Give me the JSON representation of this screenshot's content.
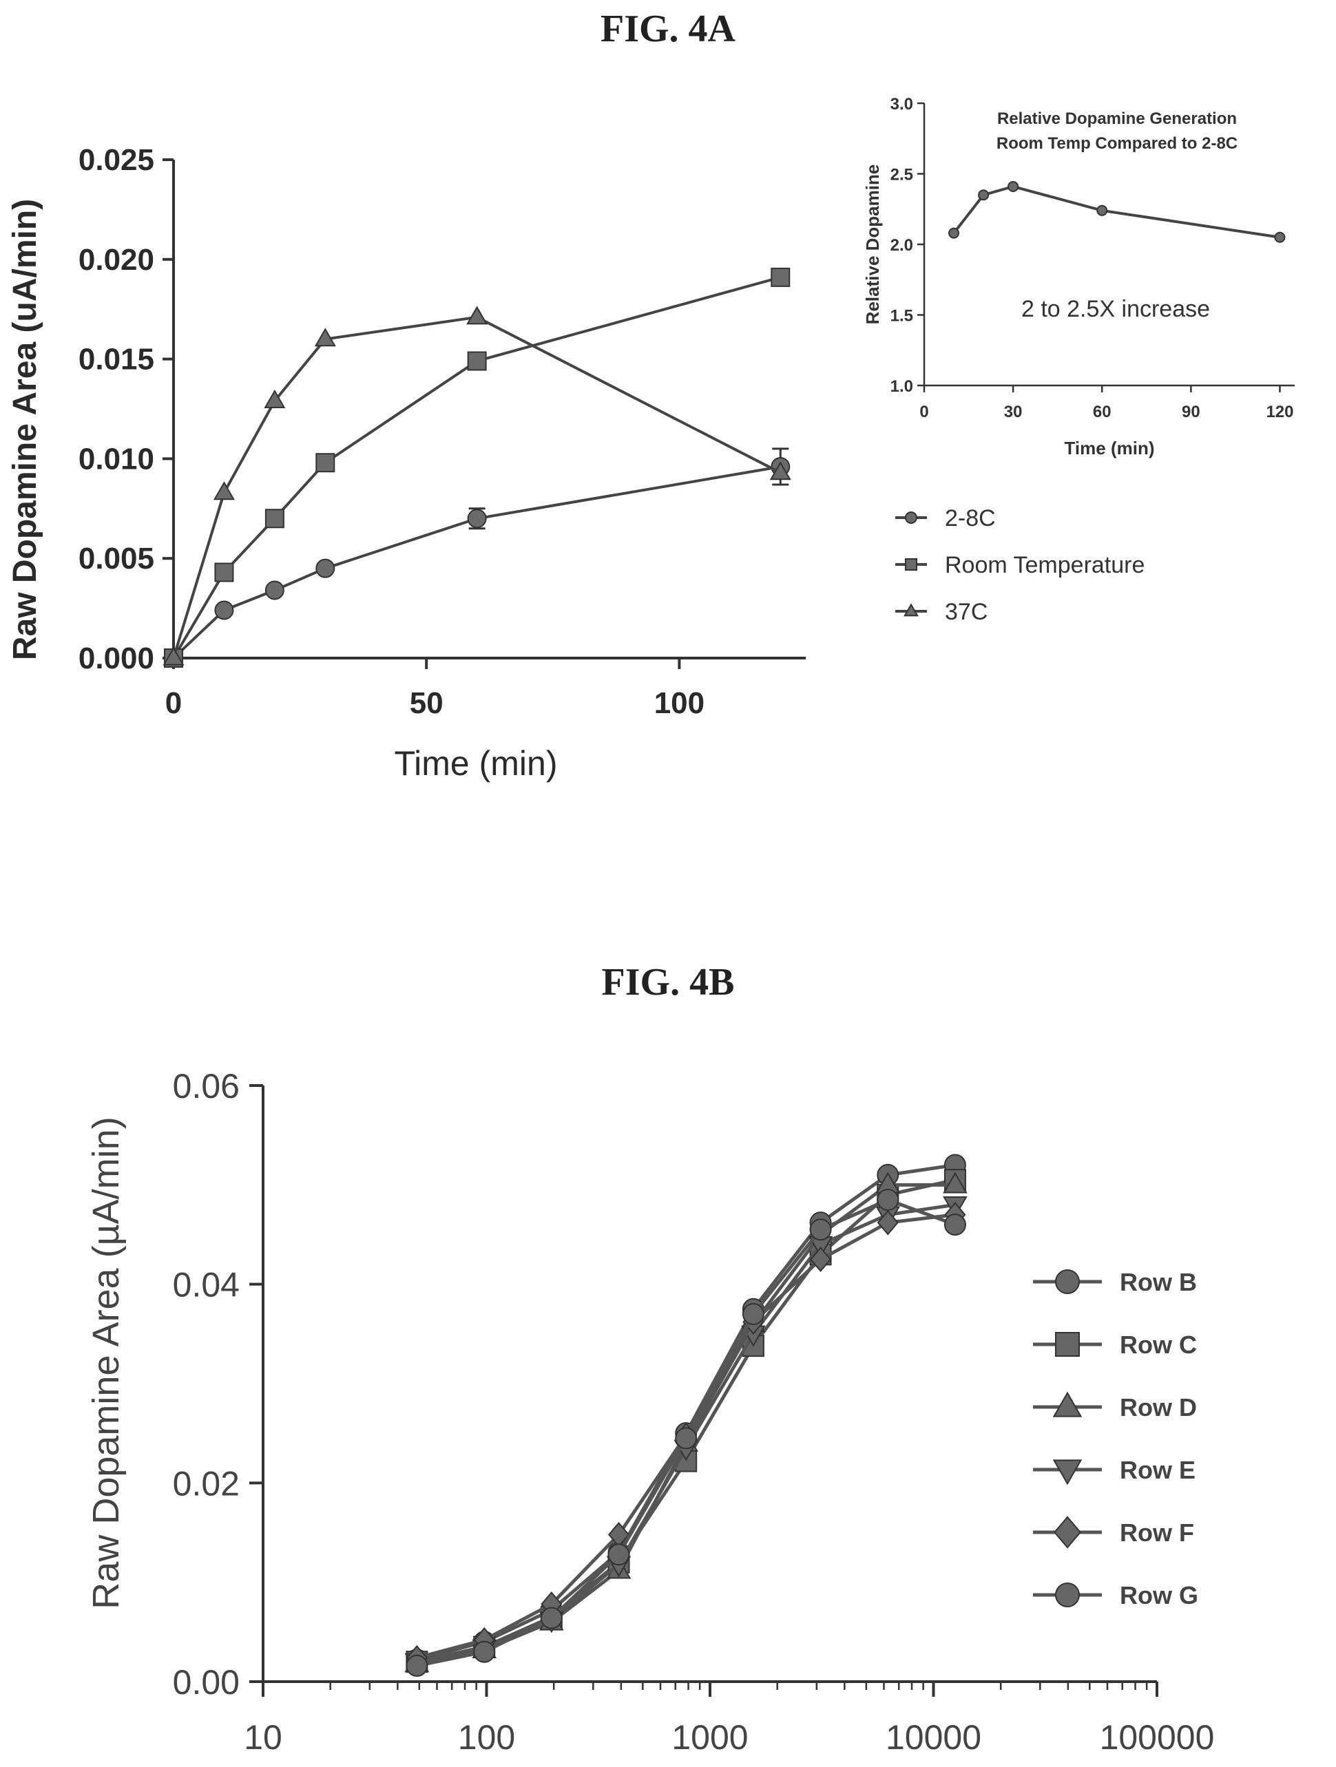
{
  "figures": [
    {
      "id": "4A",
      "label": "FIG. 4A"
    },
    {
      "id": "4B",
      "label": "FIG. 4B"
    }
  ],
  "chart_data": [
    {
      "id": "4A-main",
      "type": "line",
      "title": "",
      "xlabel": "Time (min)",
      "ylabel": "Raw Dopamine Area (uA/min)",
      "xlim": [
        0,
        125
      ],
      "ylim": [
        0,
        0.025
      ],
      "xticks": [
        "0",
        "50",
        "100"
      ],
      "xtick_values": [
        0,
        50,
        100
      ],
      "yticks": [
        "0.000",
        "0.005",
        "0.010",
        "0.015",
        "0.020",
        "0.025"
      ],
      "ytick_values": [
        0,
        0.005,
        0.01,
        0.015,
        0.02,
        0.025
      ],
      "legend_position": "right",
      "series": [
        {
          "name": "2-8C",
          "marker": "circle",
          "x": [
            0,
            10,
            20,
            30,
            60,
            120
          ],
          "y": [
            0,
            0.0024,
            0.0034,
            0.0045,
            0.007,
            0.0096
          ],
          "err": [
            0,
            0,
            0,
            0,
            0.0005,
            0.0009
          ]
        },
        {
          "name": "Room Temperature",
          "marker": "square",
          "x": [
            0,
            10,
            20,
            30,
            60,
            120
          ],
          "y": [
            0,
            0.0043,
            0.007,
            0.0098,
            0.0149,
            0.0191
          ],
          "err": [
            0,
            0,
            0,
            0,
            0,
            0
          ]
        },
        {
          "name": "37C",
          "marker": "triangle",
          "x": [
            0,
            10,
            20,
            30,
            60,
            120
          ],
          "y": [
            0,
            0.0083,
            0.0129,
            0.016,
            0.0171,
            0.0093
          ],
          "err": [
            0,
            0,
            0,
            0,
            0,
            0
          ]
        }
      ]
    },
    {
      "id": "4A-inset",
      "type": "line",
      "title": "Relative Dopamine Generation\nRoom Temp Compared to 2-8C",
      "title_lines": [
        "Relative Dopamine Generation",
        "Room Temp Compared to 2-8C"
      ],
      "xlabel": "Time (min)",
      "ylabel": "Relative Dopamine",
      "xlim": [
        0,
        125
      ],
      "ylim": [
        1.0,
        3.0
      ],
      "xticks": [
        "0",
        "30",
        "60",
        "90",
        "120"
      ],
      "xtick_values": [
        0,
        30,
        60,
        90,
        120
      ],
      "yticks": [
        "1.0",
        "1.5",
        "2.0",
        "2.5",
        "3.0"
      ],
      "ytick_values": [
        1.0,
        1.5,
        2.0,
        2.5,
        3.0
      ],
      "annotation": "2 to 2.5X increase",
      "series": [
        {
          "name": "",
          "x": [
            10,
            20,
            30,
            60,
            120
          ],
          "y": [
            2.08,
            2.35,
            2.41,
            2.24,
            2.05
          ]
        }
      ]
    },
    {
      "id": "4B",
      "type": "line",
      "title": "",
      "xlabel": "",
      "ylabel": "Raw Dopamine Area (µA/min)",
      "xscale": "log",
      "xlim": [
        10,
        100000
      ],
      "ylim": [
        0,
        0.06
      ],
      "xticks": [
        "10",
        "100",
        "1000",
        "10000",
        "100000"
      ],
      "xtick_values": [
        10,
        100,
        1000,
        10000,
        100000
      ],
      "yticks": [
        "0.00",
        "0.02",
        "0.04",
        "0.06"
      ],
      "ytick_values": [
        0,
        0.02,
        0.04,
        0.06
      ],
      "legend_position": "right",
      "series": [
        {
          "name": "Row B",
          "marker": "circle",
          "x": [
            48.8,
            97.7,
            195.3,
            390.6,
            781.3,
            1562.5,
            3125,
            6250,
            12500
          ],
          "y": [
            0.0022,
            0.004,
            0.0072,
            0.013,
            0.025,
            0.0375,
            0.0462,
            0.051,
            0.052
          ]
        },
        {
          "name": "Row C",
          "marker": "square",
          "x": [
            48.8,
            97.7,
            195.3,
            390.6,
            781.3,
            1562.5,
            3125,
            6250,
            12500
          ],
          "y": [
            0.002,
            0.0035,
            0.0065,
            0.012,
            0.0222,
            0.0338,
            0.043,
            0.049,
            0.0505
          ]
        },
        {
          "name": "Row D",
          "marker": "triangle",
          "x": [
            48.8,
            97.7,
            195.3,
            390.6,
            781.3,
            1562.5,
            3125,
            6250,
            12500
          ],
          "y": [
            0.0018,
            0.0032,
            0.006,
            0.0112,
            0.024,
            0.036,
            0.045,
            0.05,
            0.05
          ]
        },
        {
          "name": "Row E",
          "marker": "triangle-down",
          "x": [
            48.8,
            97.7,
            195.3,
            390.6,
            781.3,
            1562.5,
            3125,
            6250,
            12500
          ],
          "y": [
            0.002,
            0.0034,
            0.0062,
            0.0118,
            0.0235,
            0.035,
            0.044,
            0.047,
            0.048
          ]
        },
        {
          "name": "Row F",
          "marker": "diamond",
          "x": [
            48.8,
            97.7,
            195.3,
            390.6,
            781.3,
            1562.5,
            3125,
            6250,
            12500
          ],
          "y": [
            0.0024,
            0.0042,
            0.0078,
            0.0148,
            0.0248,
            0.0362,
            0.0425,
            0.0462,
            0.047
          ]
        },
        {
          "name": "Row G",
          "marker": "circle",
          "x": [
            48.8,
            97.7,
            195.3,
            390.6,
            781.3,
            1562.5,
            3125,
            6250,
            12500
          ],
          "y": [
            0.0016,
            0.003,
            0.0064,
            0.0128,
            0.0245,
            0.037,
            0.0455,
            0.0485,
            0.046
          ]
        }
      ]
    }
  ]
}
